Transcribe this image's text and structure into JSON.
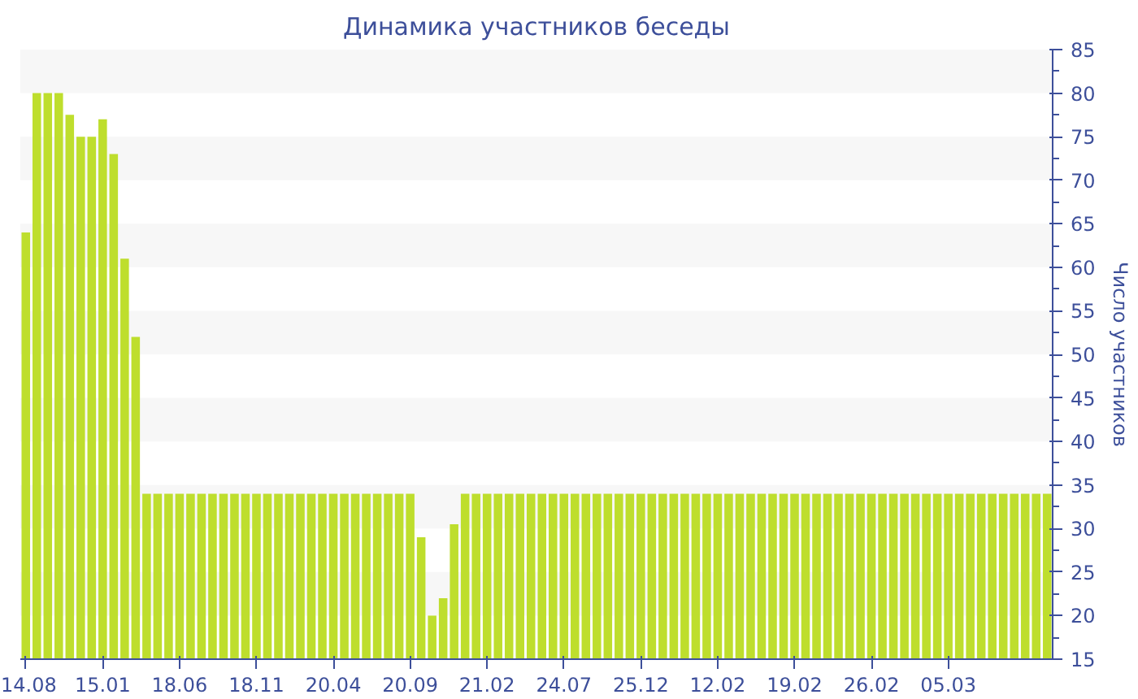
{
  "chart_data": {
    "type": "bar",
    "title": "Динамика участников беседы",
    "ylabel": "Число участников",
    "categories": [
      "14.08",
      null,
      null,
      null,
      null,
      null,
      null,
      "15.01",
      null,
      null,
      null,
      null,
      null,
      null,
      "18.06",
      null,
      null,
      null,
      null,
      null,
      null,
      "18.11",
      null,
      null,
      null,
      null,
      null,
      null,
      "20.04",
      null,
      null,
      null,
      null,
      null,
      null,
      "20.09",
      null,
      null,
      null,
      null,
      null,
      null,
      "21.02",
      null,
      null,
      null,
      null,
      null,
      null,
      "24.07",
      null,
      null,
      null,
      null,
      null,
      null,
      "25.12",
      null,
      null,
      null,
      null,
      null,
      null,
      "12.02",
      null,
      null,
      null,
      null,
      null,
      null,
      "19.02",
      null,
      null,
      null,
      null,
      null,
      null,
      "26.02",
      null,
      null,
      null,
      null,
      null,
      null,
      "05.03",
      null,
      null,
      null,
      null,
      null,
      null,
      null,
      null,
      null
    ],
    "values": [
      64,
      80,
      80,
      80,
      77.5,
      75,
      75,
      77,
      73,
      61,
      52,
      34,
      34,
      34,
      34,
      34,
      34,
      34,
      34,
      34,
      34,
      34,
      34,
      34,
      34,
      34,
      34,
      34,
      34,
      34,
      34,
      34,
      34,
      34,
      34,
      34,
      29,
      20,
      22,
      30.5,
      34,
      34,
      34,
      34,
      34,
      34,
      34,
      34,
      34,
      34,
      34,
      34,
      34,
      34,
      34,
      34,
      34,
      34,
      34,
      34,
      34,
      34,
      34,
      34,
      34,
      34,
      34,
      34,
      34,
      34,
      34,
      34,
      34,
      34,
      34,
      34,
      34,
      34,
      34,
      34,
      34,
      34,
      34,
      34,
      34,
      34,
      34,
      34,
      34,
      34,
      34,
      34,
      34,
      34
    ],
    "color": "#bede2d",
    "ylim": [
      15,
      85
    ],
    "yticks": [
      15,
      20,
      25,
      30,
      35,
      40,
      45,
      50,
      55,
      60,
      65,
      70,
      75,
      80,
      85
    ],
    "bands": [
      {
        "axis": "y",
        "from": 80,
        "to": 85,
        "color": "#f7f7f7"
      },
      {
        "axis": "y",
        "from": 70,
        "to": 75,
        "color": "#f7f7f7"
      },
      {
        "axis": "y",
        "from": 60,
        "to": 65,
        "color": "#f7f7f7"
      },
      {
        "axis": "y",
        "from": 50,
        "to": 55,
        "color": "#f7f7f7"
      },
      {
        "axis": "y",
        "from": 40,
        "to": 45,
        "color": "#f7f7f7"
      },
      {
        "axis": "y",
        "from": 30,
        "to": 35,
        "color": "#f7f7f7"
      },
      {
        "axis": "y",
        "from": 20,
        "to": 25,
        "color": "#f7f7f7"
      }
    ]
  }
}
